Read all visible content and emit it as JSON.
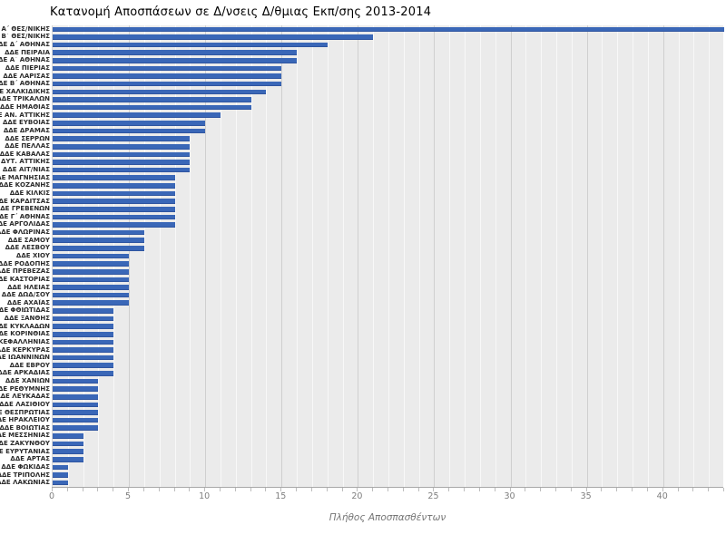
{
  "chart_data": {
    "type": "bar",
    "orientation": "horizontal",
    "title": "Κατανομή Αποσπάσεων σε Δ/νσεις Δ/θμιας Εκπ/σης 2013-2014",
    "xlabel": "Πλήθος Αποσπασθέντων",
    "ylabel": "",
    "xlim": [
      0,
      44
    ],
    "xticks": [
      0,
      5,
      10,
      15,
      20,
      25,
      30,
      35,
      40
    ],
    "grid": "minor lines every 1 unit (light), major lines every 5 units (gray)",
    "legend": "none",
    "bar_color": "#3a67b7",
    "plot_background": "#ebebeb",
    "categories": [
      "ΔΔΕ Α΄ ΘΕΣ/ΝΙΚΗΣ",
      "ΔΔΕ Β΄ ΘΕΣ/ΝΙΚΗΣ",
      "ΔΔΕ Δ΄ ΑΘΗΝΑΣ",
      "ΔΔΕ ΠΕΙΡΑΙΑ",
      "ΔΔΕ Α΄ ΑΘΗΝΑΣ",
      "ΔΔΕ ΠΙΕΡΙΑΣ",
      "ΔΔΕ ΛΑΡΙΣΑΣ",
      "ΔΔΕ Β΄ ΑΘΗΝΑΣ",
      "ΔΔΕ ΧΑΛΚΙΔΙΚΗΣ",
      "ΔΔΕ ΤΡΙΚΑΛΩΝ",
      "ΔΔΕ ΗΜΑΘΙΑΣ",
      "ΔΔΕ ΑΝ. ΑΤΤΙΚΗΣ",
      "ΔΔΕ ΕΥΒΟΙΑΣ",
      "ΔΔΕ ΔΡΑΜΑΣ",
      "ΔΔΕ ΣΕΡΡΩΝ",
      "ΔΔΕ ΠΕΛΛΑΣ",
      "ΔΔΕ ΚΑΒΑΛΑΣ",
      "ΔΔΕ ΔΥΤ. ΑΤΤΙΚΗΣ",
      "ΔΔΕ ΑΙΤ/ΝΙΑΣ",
      "ΔΔΕ ΜΑΓΝΗΣΙΑΣ",
      "ΔΔΕ ΚΟΖΑΝΗΣ",
      "ΔΔΕ ΚΙΛΚΙΣ",
      "ΔΔΕ ΚΑΡΔΙΤΣΑΣ",
      "ΔΔΕ ΓΡΕΒΕΝΩΝ",
      "ΔΔΕ Γ΄ ΑΘΗΝΑΣ",
      "ΔΔΕ ΑΡΓΟΛΙΔΑΣ",
      "ΔΔΕ ΦΛΩΡΙΝΑΣ",
      "ΔΔΕ ΣΑΜΟΥ",
      "ΔΔΕ ΛΕΣΒΟΥ",
      "ΔΔΕ ΧΙΟΥ",
      "ΔΔΕ ΡΟΔΟΠΗΣ",
      "ΔΔΕ ΠΡΕΒΕΖΑΣ",
      "ΔΔΕ ΚΑΣΤΟΡΙΑΣ",
      "ΔΔΕ ΗΛΕΙΑΣ",
      "ΔΔΕ ΔΩΔ/ΣΟΥ",
      "ΔΔΕ ΑΧΑΪΑΣ",
      "ΔΔΕ ΦΘΙΩΤΙΔΑΣ",
      "ΔΔΕ ΞΑΝΘΗΣ",
      "ΔΔΕ ΚΥΚΛΑΔΩΝ",
      "ΔΔΕ ΚΟΡΙΝΘΙΑΣ",
      "ΔΔΕ ΚΕΦΑΛΛΗΝΙΑΣ",
      "ΔΔΕ ΚΕΡΚΥΡΑΣ",
      "ΔΔΕ ΙΩΑΝΝΙΝΩΝ",
      "ΔΔΕ ΕΒΡΟΥ",
      "ΔΔΕ ΑΡΚΑΔΙΑΣ",
      "ΔΔΕ ΧΑΝΙΩΝ",
      "ΔΔΕ ΡΕΘΥΜΝΗΣ",
      "ΔΔΕ ΛΕΥΚΑΔΑΣ",
      "ΔΔΕ ΛΑΣΙΘΙΟΥ",
      "ΔΔΕ ΘΕΣΠΡΩΤΙΑΣ",
      "ΔΔΕ ΗΡΑΚΛΕΙΟΥ",
      "ΔΔΕ ΒΟΙΩΤΙΑΣ",
      "ΔΔΕ ΜΕΣΣΗΝΙΑΣ",
      "ΔΔΕ ΖΑΚΥΝΘΟΥ",
      "ΔΔΕ ΕΥΡΥΤΑΝΙΑΣ",
      "ΔΔΕ ΑΡΤΑΣ",
      "ΔΔΕ ΦΩΚΙΔΑΣ",
      "ΔΔΕ ΤΡΙΠΟΛΗΣ",
      "ΔΔΕ ΛΑΚΩΝΙΑΣ"
    ],
    "values": [
      44,
      21,
      18,
      16,
      16,
      15,
      15,
      15,
      14,
      13,
      13,
      11,
      10,
      10,
      9,
      9,
      9,
      9,
      9,
      8,
      8,
      8,
      8,
      8,
      8,
      8,
      6,
      6,
      6,
      5,
      5,
      5,
      5,
      5,
      5,
      5,
      4,
      4,
      4,
      4,
      4,
      4,
      4,
      4,
      4,
      3,
      3,
      3,
      3,
      3,
      3,
      3,
      2,
      2,
      2,
      2,
      1,
      1,
      1
    ]
  }
}
